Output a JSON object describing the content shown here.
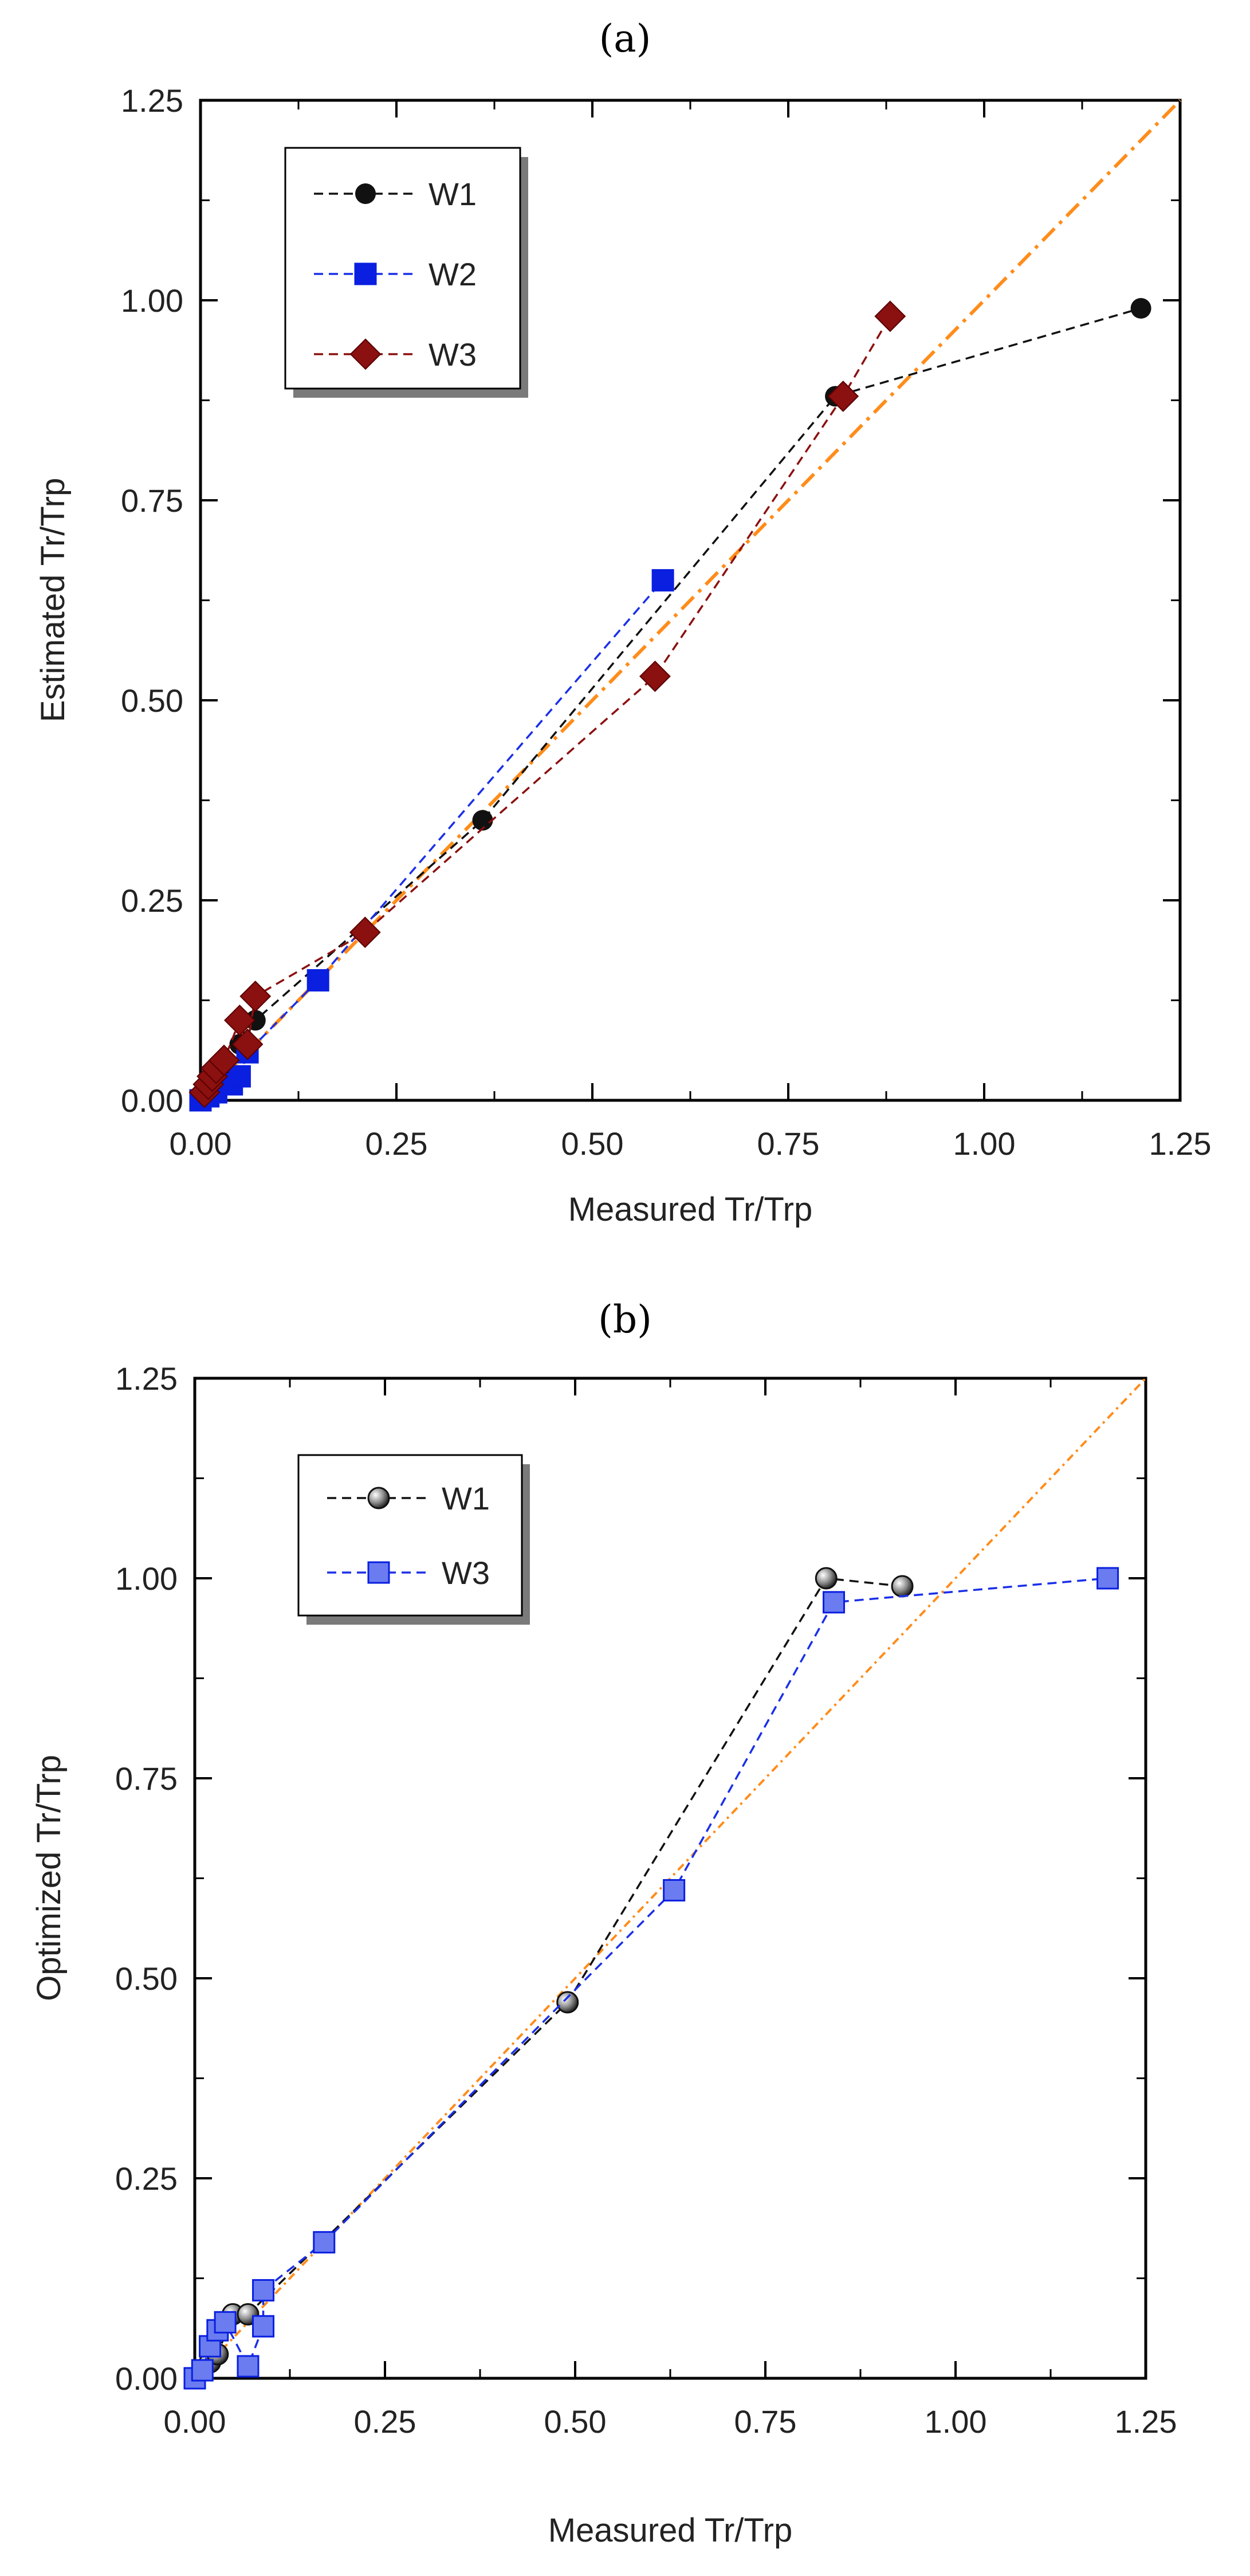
{
  "chart_data": [
    {
      "type": "line",
      "panel_label": "(a)",
      "xlabel": "Measured Tr/Trp",
      "ylabel": "Estimated Tr/Trp",
      "xlim": [
        0,
        1.25
      ],
      "ylim": [
        0,
        1.25
      ],
      "x_ticks": [
        "0.00",
        "0.25",
        "0.50",
        "0.75",
        "1.00",
        "1.25"
      ],
      "y_ticks": [
        "0.00",
        "0.25",
        "0.50",
        "0.75",
        "1.00",
        "1.25"
      ],
      "legend_position": "top-left",
      "reference_line": {
        "name": "1:1 line",
        "x": [
          0,
          1.25
        ],
        "y": [
          0,
          1.25
        ],
        "color": "#ff8c1a",
        "style": "dash-dot"
      },
      "series": [
        {
          "name": "W1",
          "marker": "circle",
          "color": "#111111",
          "line_color": "#111111",
          "x": [
            0.0,
            0.01,
            0.02,
            0.03,
            0.05,
            0.07,
            0.36,
            0.81,
            1.2
          ],
          "y": [
            0.0,
            0.01,
            0.02,
            0.04,
            0.07,
            0.1,
            0.35,
            0.88,
            0.99
          ]
        },
        {
          "name": "W2",
          "marker": "square",
          "color": "#0a1fe0",
          "line_color": "#1a2fe8",
          "x": [
            0.0,
            0.01,
            0.02,
            0.04,
            0.05,
            0.06,
            0.15,
            0.59
          ],
          "y": [
            0.0,
            0.005,
            0.01,
            0.02,
            0.03,
            0.06,
            0.15,
            0.65
          ]
        },
        {
          "name": "W3",
          "marker": "diamond",
          "color": "#8b1010",
          "line_color": "#8b1010",
          "x": [
            0.005,
            0.01,
            0.015,
            0.02,
            0.03,
            0.05,
            0.06,
            0.07,
            0.21,
            0.58,
            0.82,
            0.88
          ],
          "y": [
            0.01,
            0.02,
            0.03,
            0.04,
            0.05,
            0.1,
            0.07,
            0.13,
            0.21,
            0.53,
            0.88,
            0.98
          ]
        }
      ]
    },
    {
      "type": "line",
      "panel_label": "(b)",
      "xlabel": "Measured Tr/Trp",
      "ylabel": "Optimized Tr/Trp",
      "xlim": [
        0,
        1.25
      ],
      "ylim": [
        0,
        1.25
      ],
      "x_ticks": [
        "0.00",
        "0.25",
        "0.50",
        "0.75",
        "1.00",
        "1.25"
      ],
      "y_ticks": [
        "0.00",
        "0.25",
        "0.50",
        "0.75",
        "1.00",
        "1.25"
      ],
      "legend_position": "top-left",
      "reference_line": {
        "name": "1:1 line",
        "x": [
          0,
          1.25
        ],
        "y": [
          0,
          1.25
        ],
        "color": "#ff8c1a",
        "style": "dash-dot"
      },
      "series": [
        {
          "name": "W1",
          "marker": "sphere",
          "color": "#777777",
          "line_color": "#111111",
          "x": [
            0.0,
            0.01,
            0.02,
            0.03,
            0.05,
            0.07,
            0.49,
            0.83,
            0.93
          ],
          "y": [
            0.0,
            0.01,
            0.02,
            0.03,
            0.08,
            0.08,
            0.47,
            1.0,
            0.99
          ]
        },
        {
          "name": "W3",
          "marker": "square",
          "color": "#6a7cf0",
          "line_color": "#1a2fe8",
          "x": [
            0.0,
            0.01,
            0.02,
            0.03,
            0.04,
            0.07,
            0.09,
            0.09,
            0.17,
            0.63,
            0.84,
            1.2
          ],
          "y": [
            0.0,
            0.01,
            0.04,
            0.06,
            0.07,
            0.015,
            0.065,
            0.11,
            0.17,
            0.61,
            0.97,
            1.0
          ]
        }
      ]
    }
  ]
}
